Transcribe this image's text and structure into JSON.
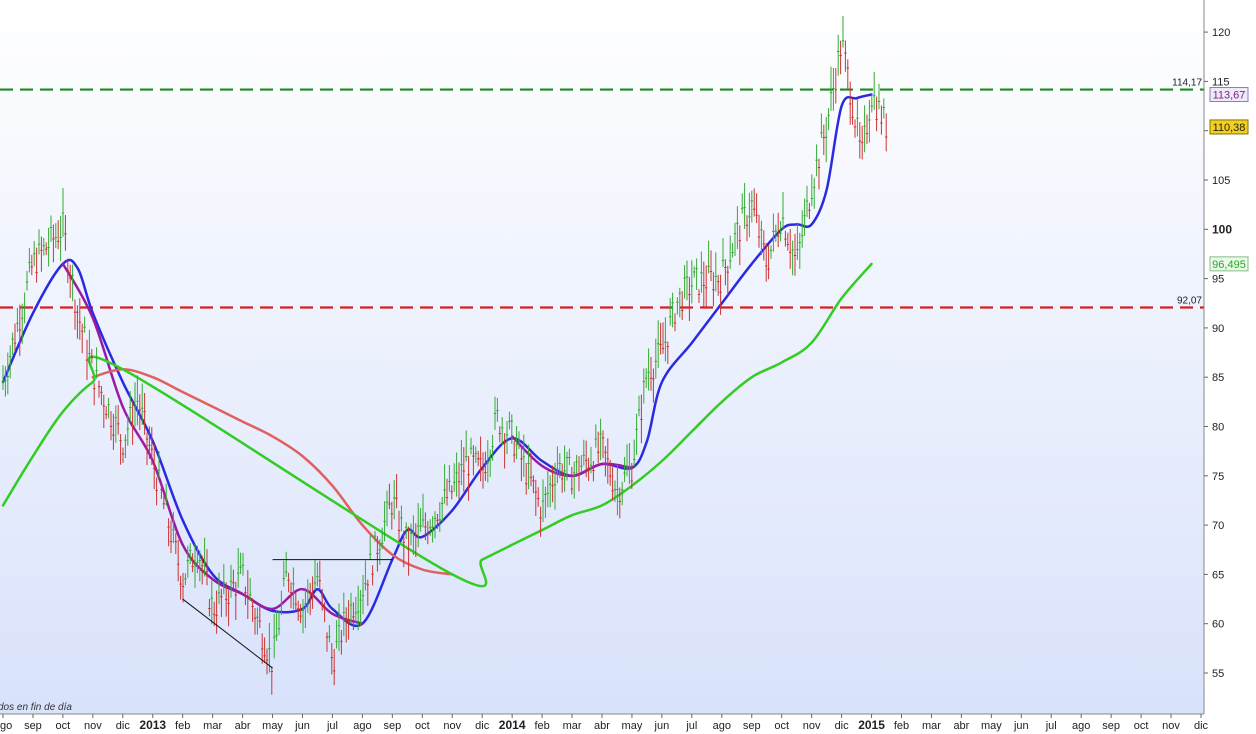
{
  "chart_data": {
    "type": "line",
    "title": "",
    "xlabel": "",
    "ylabel": "",
    "ylim": [
      51,
      124
    ],
    "grid": false,
    "y_ticks": [
      55,
      60,
      65,
      70,
      75,
      80,
      85,
      90,
      95,
      100,
      105,
      110,
      115,
      120
    ],
    "y_tick_labels": [
      "55",
      "60",
      "65",
      "70",
      "75",
      "80",
      "85",
      "90",
      "95",
      "100",
      "105",
      "110",
      "115",
      "120"
    ],
    "y_major_tick": 100,
    "x_ticks": [
      "ago",
      "sep",
      "oct",
      "nov",
      "dic",
      "2013",
      "feb",
      "mar",
      "abr",
      "may",
      "jun",
      "jul",
      "ago",
      "sep",
      "oct",
      "nov",
      "dic",
      "2014",
      "feb",
      "mar",
      "abr",
      "may",
      "jun",
      "jul",
      "ago",
      "sep",
      "oct",
      "nov",
      "dic",
      "2015",
      "feb",
      "mar",
      "abr",
      "may",
      "jun",
      "jul",
      "ago",
      "sep",
      "oct",
      "nov",
      "dic"
    ],
    "x_major_ticks": [
      "2013",
      "2014",
      "2015"
    ],
    "footnote": "dos en fin de día",
    "levels": [
      {
        "label": "114,17",
        "value": 114.17,
        "color": "#1e8a1e",
        "style": "dashed"
      },
      {
        "label": "92,07",
        "value": 92.07,
        "color": "#d42020",
        "style": "dashed"
      }
    ],
    "price_tags": [
      {
        "label": "113,67",
        "value": 113.67,
        "fill": "#ececf8",
        "border": "#8080c0",
        "text_color": "#8a1a8a"
      },
      {
        "label": "110,38",
        "value": 110.38,
        "fill": "#f2d020",
        "border": "#8a7000",
        "text_color": "#222222"
      },
      {
        "label": "96,495",
        "value": 96.495,
        "fill": "#eaf8ea",
        "border": "#80c080",
        "text_color": "#22aa22"
      }
    ],
    "price": {
      "name": "",
      "color_up": "#33aa33",
      "color_down": "#cc3333",
      "path": [
        [
          "ago",
          84.5
        ],
        [
          "sep",
          96.5
        ],
        [
          "oct",
          100.2
        ],
        [
          "oct",
          91.5
        ],
        [
          "nov",
          85.5
        ],
        [
          "dic",
          78.5
        ],
        [
          "dic",
          82.8
        ],
        [
          "2013",
          76.5
        ],
        [
          "feb",
          64.5
        ],
        [
          "feb",
          67.8
        ],
        [
          "mar",
          61.5
        ],
        [
          "abr",
          64.8
        ],
        [
          "may",
          56.0
        ],
        [
          "may",
          65.5
        ],
        [
          "jun",
          61.5
        ],
        [
          "jun",
          64.8
        ],
        [
          "jul",
          56.2
        ],
        [
          "jul",
          61.0
        ],
        [
          "ago",
          63.5
        ],
        [
          "sep",
          72.5
        ],
        [
          "sep",
          68.0
        ],
        [
          "oct",
          69.5
        ],
        [
          "nov",
          73.5
        ],
        [
          "nov",
          76.5
        ],
        [
          "dic",
          75.5
        ],
        [
          "dic",
          80.8
        ],
        [
          "2014",
          79.0
        ],
        [
          "feb",
          71.5
        ],
        [
          "feb",
          76.0
        ],
        [
          "mar",
          75.2
        ],
        [
          "abr",
          77.8
        ],
        [
          "abr",
          73.5
        ],
        [
          "may",
          76.0
        ],
        [
          "may",
          85.5
        ],
        [
          "jun",
          87.5
        ],
        [
          "jun",
          92.5
        ],
        [
          "jul",
          94.5
        ],
        [
          "ago",
          95.2
        ],
        [
          "ago",
          99.5
        ],
        [
          "sep",
          102.5
        ],
        [
          "sep",
          96.5
        ],
        [
          "oct",
          101.5
        ],
        [
          "oct",
          96.5
        ],
        [
          "nov",
          104.5
        ],
        [
          "nov",
          110.5
        ],
        [
          "dic",
          119.0
        ],
        [
          "dic",
          113.5
        ],
        [
          "dic",
          107.0
        ],
        [
          "2015",
          113.8
        ],
        [
          "2015",
          110.4
        ]
      ]
    },
    "series": [
      {
        "color": "#2a2ae0",
        "width": 2.5,
        "points": [
          [
            "ago",
            84.5
          ],
          [
            "sep",
            91.5
          ],
          [
            "oct",
            96.5
          ],
          [
            "oct",
            96.0
          ],
          [
            "nov",
            91.5
          ],
          [
            "dic",
            84.5
          ],
          [
            "2013",
            78.5
          ],
          [
            "feb",
            70.5
          ],
          [
            "mar",
            65.0
          ],
          [
            "abr",
            63.0
          ],
          [
            "may",
            61.3
          ],
          [
            "jun",
            61.5
          ],
          [
            "jun",
            63.5
          ],
          [
            "jul",
            61.5
          ],
          [
            "ago",
            60.0
          ],
          [
            "sep",
            66.5
          ],
          [
            "sep",
            69.5
          ],
          [
            "oct",
            68.8
          ],
          [
            "nov",
            71.5
          ],
          [
            "dic",
            75.8
          ],
          [
            "2014",
            78.8
          ],
          [
            "feb",
            76.5
          ],
          [
            "mar",
            75.0
          ],
          [
            "abr",
            76.2
          ],
          [
            "may",
            75.8
          ],
          [
            "may",
            78.5
          ],
          [
            "jun",
            84.5
          ],
          [
            "jul",
            88.5
          ],
          [
            "ago",
            92.5
          ],
          [
            "sep",
            96.5
          ],
          [
            "oct",
            100.0
          ],
          [
            "oct",
            100.5
          ],
          [
            "nov",
            100.5
          ],
          [
            "nov",
            104.0
          ],
          [
            "dic",
            112.5
          ],
          [
            "dic",
            113.3
          ],
          [
            "2015",
            113.67
          ]
        ]
      },
      {
        "color": "#9a1aa8",
        "width": 2.5,
        "points": [
          [
            "oct",
            96.5
          ],
          [
            "nov",
            91.0
          ],
          [
            "dic",
            82.0
          ],
          [
            "2013",
            76.5
          ],
          [
            "feb",
            68.0
          ],
          [
            "mar",
            64.5
          ],
          [
            "abr",
            63.0
          ],
          [
            "may",
            61.5
          ],
          [
            "jun",
            63.5
          ],
          [
            "jul",
            61.0
          ],
          [
            "ago",
            60.0
          ]
        ]
      },
      {
        "color": "#9a1aa8",
        "width": 2.5,
        "points": [
          [
            "2014",
            79.0
          ],
          [
            "feb",
            76.0
          ],
          [
            "mar",
            75.0
          ],
          [
            "abr",
            76.2
          ],
          [
            "may",
            75.8
          ]
        ]
      },
      {
        "color": "#e06060",
        "width": 2.5,
        "points": [
          [
            "nov",
            85.0
          ],
          [
            "dic",
            85.8
          ],
          [
            "2013",
            85.0
          ],
          [
            "feb",
            83.5
          ],
          [
            "mar",
            82.0
          ],
          [
            "abr",
            80.5
          ],
          [
            "may",
            79.0
          ],
          [
            "jun",
            77.0
          ],
          [
            "jul",
            74.0
          ],
          [
            "ago",
            70.0
          ],
          [
            "sep",
            67.0
          ],
          [
            "oct",
            65.5
          ],
          [
            "nov",
            65.0
          ]
        ]
      },
      {
        "color": "#33cc22",
        "width": 2.5,
        "points": [
          [
            "ago",
            72.0
          ],
          [
            "sep",
            77.0
          ],
          [
            "oct",
            81.5
          ],
          [
            "nov",
            84.5
          ],
          [
            "dic",
            85.8
          ],
          [
            "nov",
            65.0
          ],
          [
            "dic",
            66.5
          ],
          [
            "2014",
            68.0
          ],
          [
            "feb",
            69.5
          ],
          [
            "mar",
            71.0
          ],
          [
            "abr",
            72.0
          ],
          [
            "may",
            74.0
          ],
          [
            "jun",
            76.5
          ],
          [
            "jul",
            79.5
          ],
          [
            "ago",
            82.5
          ],
          [
            "sep",
            85.0
          ],
          [
            "oct",
            86.5
          ],
          [
            "nov",
            88.5
          ],
          [
            "dic",
            93.0
          ],
          [
            "2015",
            96.495
          ]
        ]
      }
    ],
    "trendlines": [
      {
        "from": [
          "feb",
          62.5
        ],
        "to": [
          "may",
          55.5
        ]
      },
      {
        "from": [
          "may",
          66.5
        ],
        "to": [
          "sep",
          66.5
        ]
      }
    ]
  }
}
